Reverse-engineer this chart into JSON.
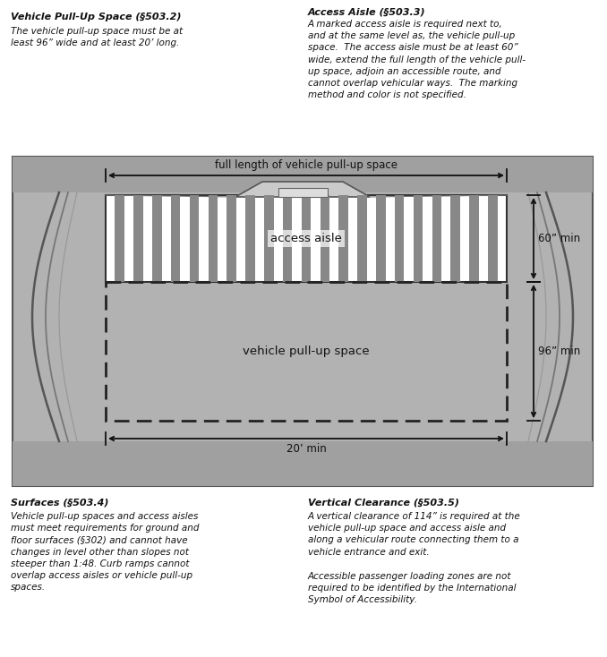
{
  "bg_color": "#ffffff",
  "diagram_outer_bg": "#b2b2b2",
  "diagram_inner_bg": "#c0c0c0",
  "road_color": "#a8a8a8",
  "aisle_white": "#ffffff",
  "aisle_gray": "#7a7a7a",
  "dim_color": "#111111",
  "text_color": "#111111",
  "building_fill": "#c8c8c8",
  "building_edge": "#666666",
  "curb_line_color": "#888888",
  "dashed_color": "#1a1a1a",
  "top_left_title": "Vehicle Pull-Up Space (§503.2)",
  "top_left_body": "The vehicle pull-up space must be at\nleast 96” wide and at least 20’ long.",
  "top_right_title": "Access Aisle (§503.3)",
  "top_right_body1": "A marked access aisle is required next to,",
  "top_right_body2": "and at the same level as, the vehicle pull-up",
  "top_right_body3": "space.  The access aisle must be at least 60”",
  "top_right_body4": "wide, extend the full length of the vehicle pull-",
  "top_right_body5": "up space, adjoin an accessible route, and",
  "top_right_body6": "cannot overlap vehicular ways.  The marking",
  "top_right_body7": "method and color is not specified.",
  "bottom_left_title": "Surfaces (§503.4)",
  "bottom_left_body": "Vehicle pull-up spaces and access aisles\nmust meet requirements for ground and\nfloor surfaces (§302) and cannot have\nchanges in level other than slopes not\nsteeper than 1:48. Curb ramps cannot\noverlap access aisles or vehicle pull-up\nspaces.",
  "bottom_right_title": "Vertical Clearance (§503.5)",
  "bottom_right_body1": "A vertical clearance of 114” is required at the\nvehicle pull-up space and access aisle and\nalong a vehicular route connecting them to a\nvehicle entrance and exit.",
  "bottom_right_body2": "Accessible passenger loading zones are not\nrequired to be identified by the International\nSymbol of Accessibility.",
  "label_full_length": "full length of vehicle pull-up space",
  "label_access_aisle": "access aisle",
  "label_pullup": "vehicle pull-up space",
  "label_60": "60” min",
  "label_96": "96” min",
  "label_20": "20’ min"
}
